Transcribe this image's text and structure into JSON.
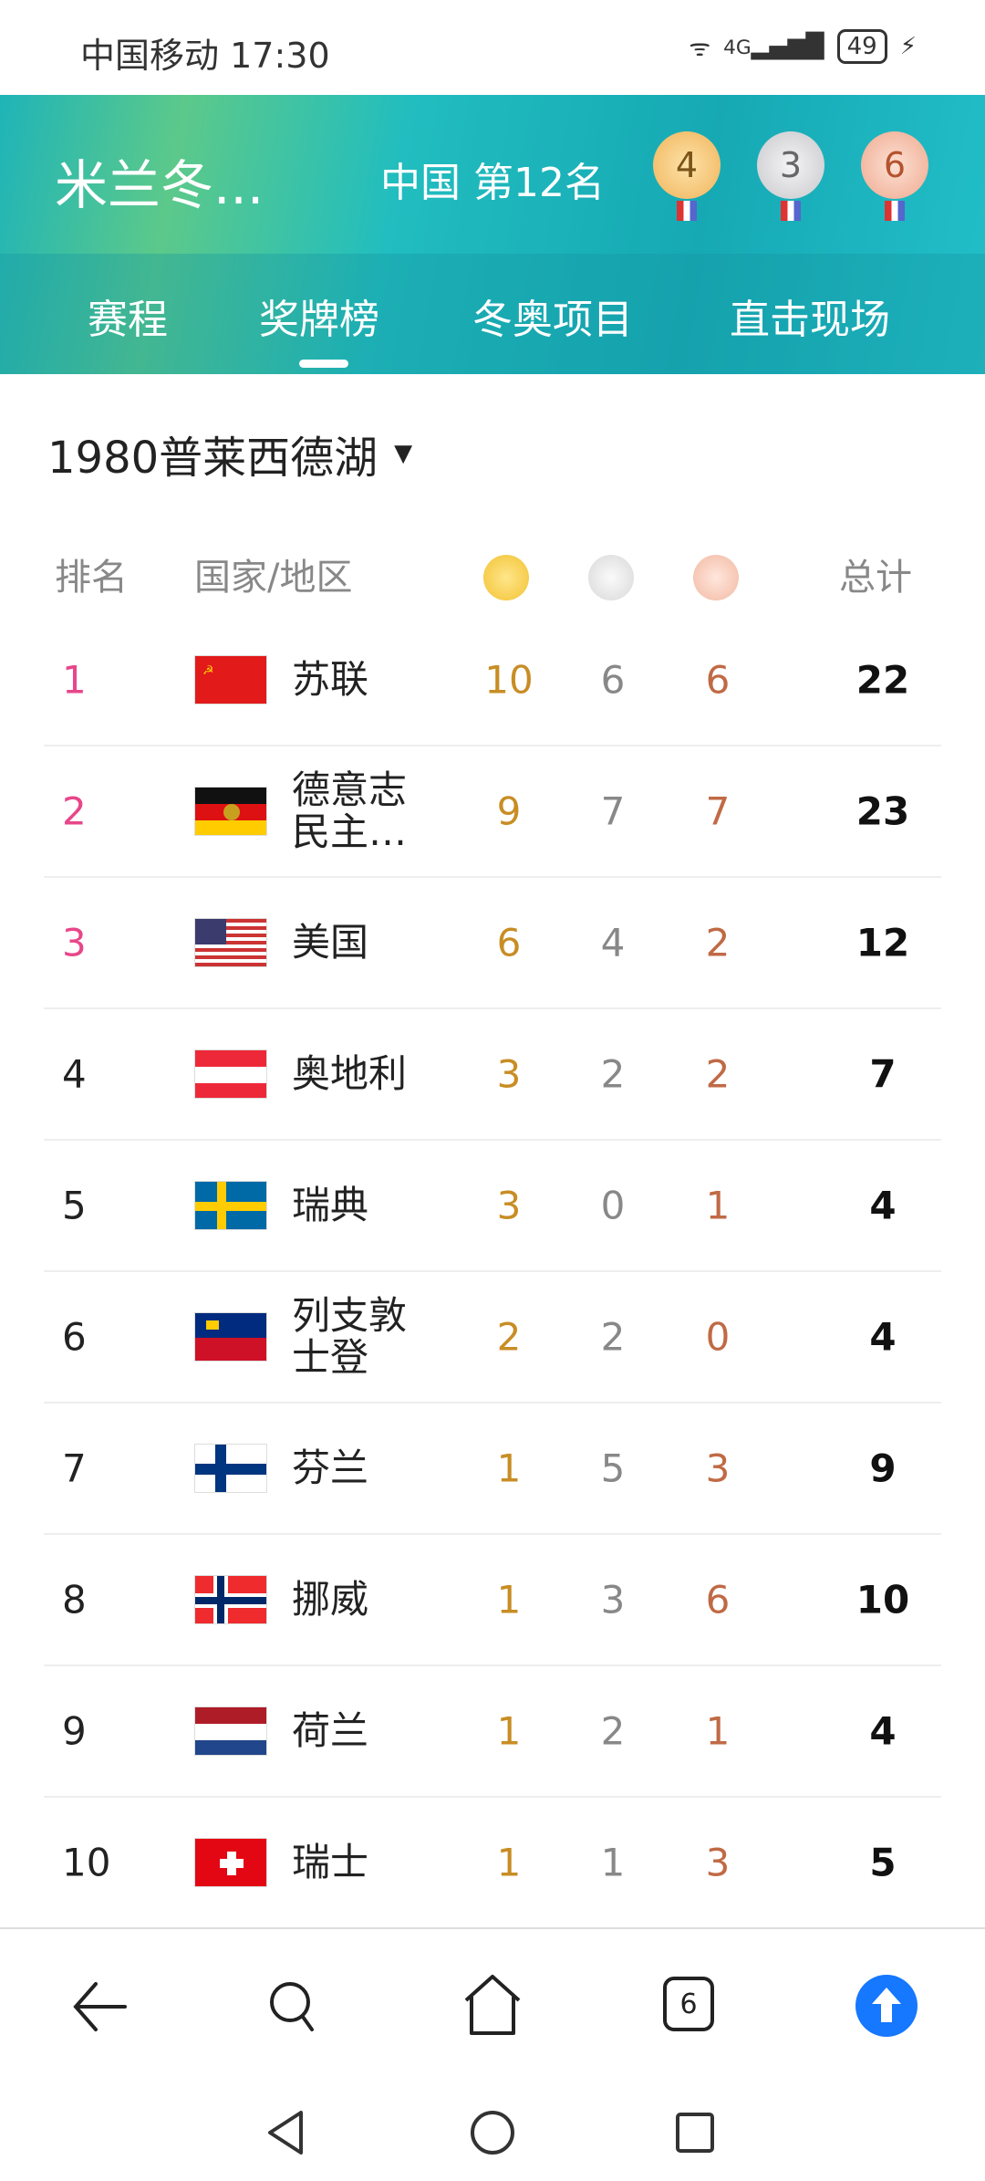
{
  "status": {
    "carrier": "中国移动",
    "time": "17:30",
    "battery": "49",
    "network": "4G"
  },
  "header": {
    "title": "米兰冬...",
    "country": "中国",
    "rank": "第12名",
    "medals": {
      "gold": "4",
      "silver": "3",
      "bronze": "6"
    }
  },
  "tabs": [
    {
      "label": "赛程"
    },
    {
      "label": "奖牌榜",
      "active": true
    },
    {
      "label": "冬奥项目"
    },
    {
      "label": "直击现场"
    }
  ],
  "games_selector": "1980普莱西德湖",
  "table": {
    "headers": {
      "rank": "排名",
      "country": "国家/地区",
      "total": "总计"
    },
    "rows": [
      {
        "rank": "1",
        "name": "苏联",
        "flag": "soviet-union",
        "gold": "10",
        "silver": "6",
        "bronze": "6",
        "total": "22"
      },
      {
        "rank": "2",
        "name": "德意志民主…",
        "flag": "east-germany",
        "gold": "9",
        "silver": "7",
        "bronze": "7",
        "total": "23"
      },
      {
        "rank": "3",
        "name": "美国",
        "flag": "usa",
        "gold": "6",
        "silver": "4",
        "bronze": "2",
        "total": "12"
      },
      {
        "rank": "4",
        "name": "奥地利",
        "flag": "austria",
        "gold": "3",
        "silver": "2",
        "bronze": "2",
        "total": "7"
      },
      {
        "rank": "5",
        "name": "瑞典",
        "flag": "sweden",
        "gold": "3",
        "silver": "0",
        "bronze": "1",
        "total": "4"
      },
      {
        "rank": "6",
        "name": "列支敦士登",
        "flag": "liechtenstein",
        "gold": "2",
        "silver": "2",
        "bronze": "0",
        "total": "4"
      },
      {
        "rank": "7",
        "name": "芬兰",
        "flag": "finland",
        "gold": "1",
        "silver": "5",
        "bronze": "3",
        "total": "9"
      },
      {
        "rank": "8",
        "name": "挪威",
        "flag": "norway",
        "gold": "1",
        "silver": "3",
        "bronze": "6",
        "total": "10"
      },
      {
        "rank": "9",
        "name": "荷兰",
        "flag": "netherlands",
        "gold": "1",
        "silver": "2",
        "bronze": "1",
        "total": "4"
      },
      {
        "rank": "10",
        "name": "瑞士",
        "flag": "switzerland",
        "gold": "1",
        "silver": "1",
        "bronze": "3",
        "total": "5"
      }
    ]
  },
  "bottom_nav": {
    "tab_count": "6"
  },
  "colors": {
    "accent": "#1677ff",
    "rank_top": "#e8468a",
    "gold": "#c88d24",
    "silver": "#888888",
    "bronze": "#c06a45",
    "header": "#1fb4b8"
  }
}
